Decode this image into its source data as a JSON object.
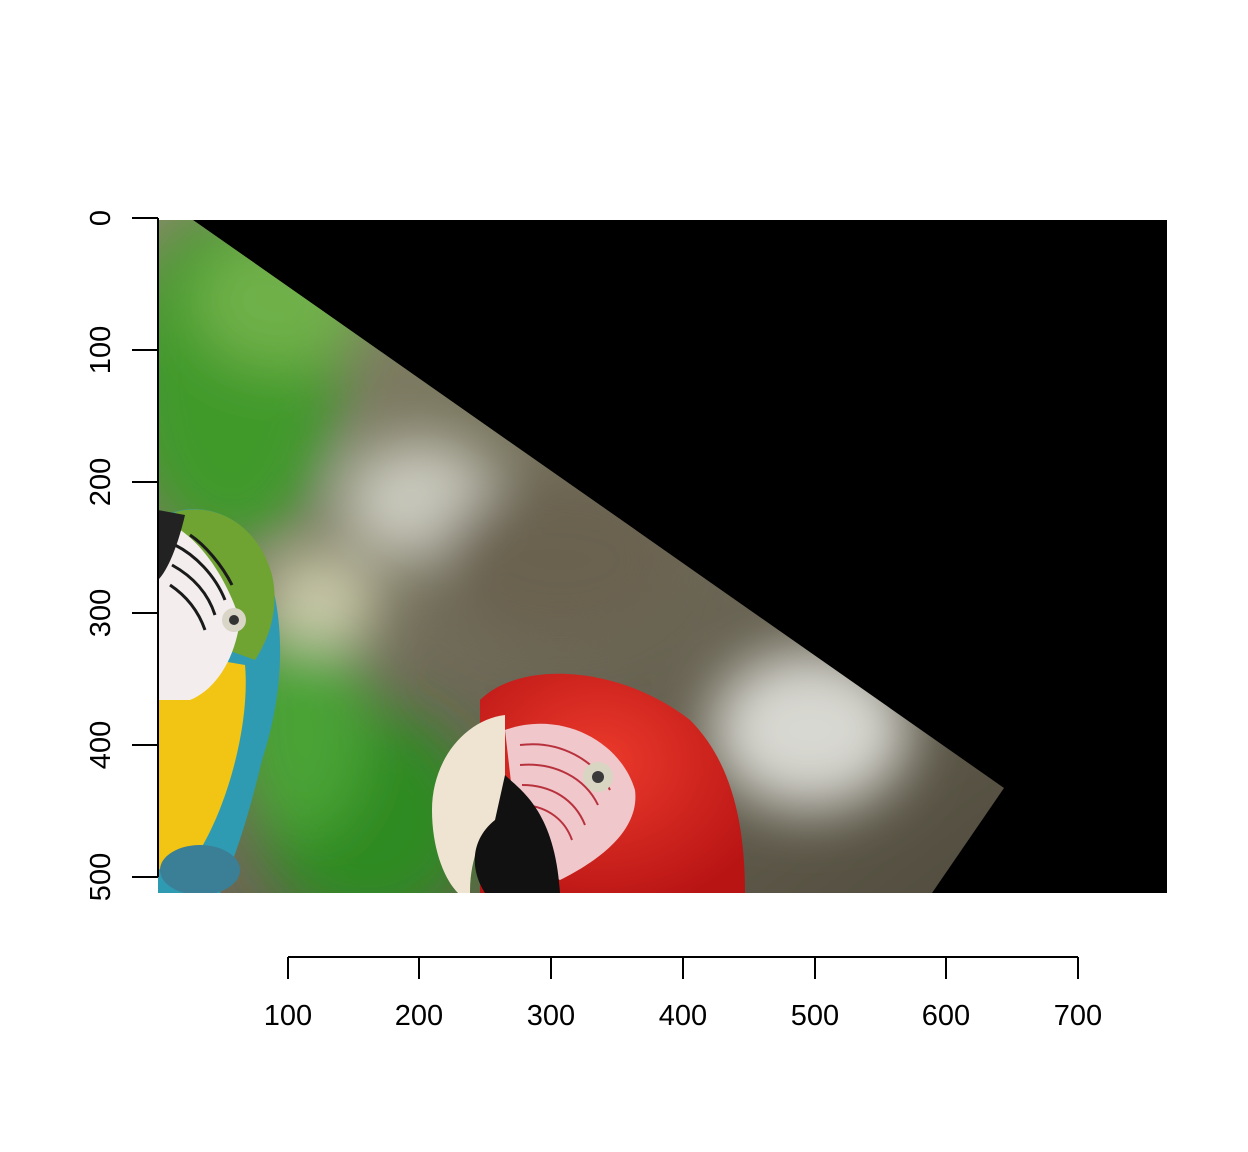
{
  "figure": {
    "content": "rotated parrot photo",
    "x_axis": {
      "ticks": [
        100,
        200,
        300,
        400,
        500,
        600,
        700
      ],
      "labels": [
        "100",
        "200",
        "300",
        "400",
        "500",
        "600",
        "700"
      ],
      "range": [
        0,
        768
      ]
    },
    "y_axis": {
      "ticks": [
        0,
        100,
        200,
        300,
        400,
        500
      ],
      "labels": [
        "0",
        "100",
        "200",
        "300",
        "400",
        "500"
      ],
      "range": [
        0,
        512
      ],
      "inverted": true
    },
    "colors": {
      "background_fill": "#000000",
      "scarlet_macaw": "#d8201c",
      "blue_gold_macaw_blue": "#2f9bb3",
      "blue_gold_macaw_yellow": "#f2c414",
      "foliage_green": "#3f9a2c",
      "blur_background": "#7a7565"
    }
  }
}
